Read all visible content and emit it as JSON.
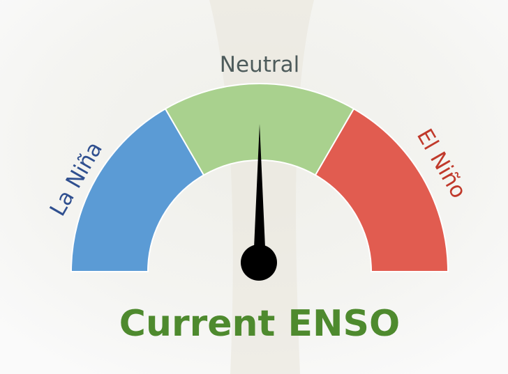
{
  "gauge": {
    "segments": [
      {
        "label": "La Niña"
      },
      {
        "label": "Neutral"
      },
      {
        "label": "El Niño"
      }
    ]
  },
  "title": "Current ENSO"
}
